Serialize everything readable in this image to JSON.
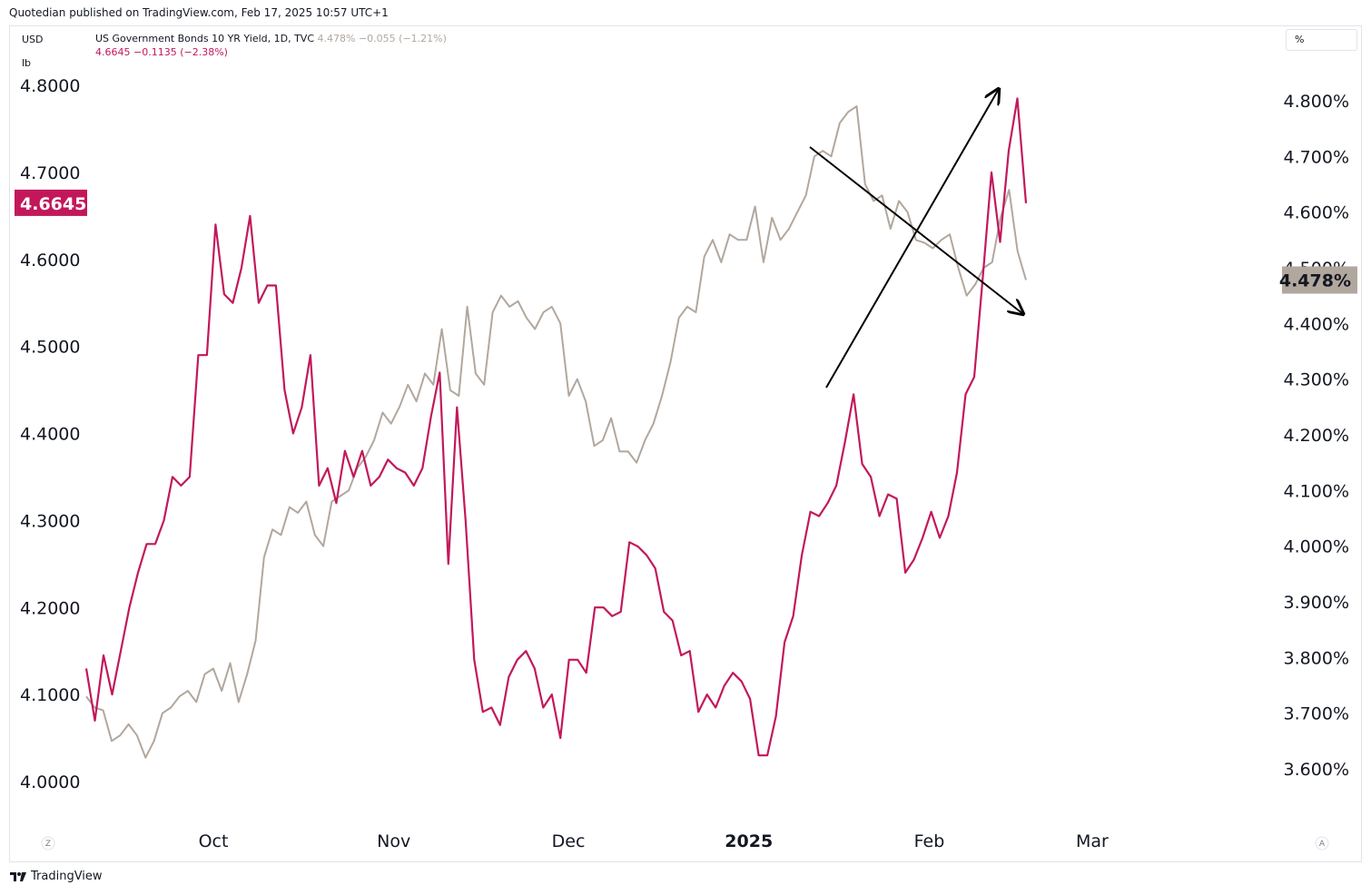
{
  "header": {
    "published_text": "Quotedian published on TradingView.com, Feb 17, 2025 10:57 UTC+1"
  },
  "left_units": {
    "currency": "USD",
    "unit": "lb"
  },
  "legend": {
    "symbol_line": "US Government Bonds 10 YR Yield, 1D, TVC",
    "symbol_last": "4.478%",
    "symbol_change": "−0.055 (−1.21%)",
    "second_last": "4.6645",
    "second_change": "−0.1135 (−2.38%)"
  },
  "right_unit_label": "%",
  "scale_mode_left": "Z",
  "scale_mode_right": "A",
  "footer": {
    "brand": "TradingView"
  },
  "colors": {
    "yield": "#b2a79d",
    "copper": "#c2185b",
    "arrow": "#000000"
  },
  "chart_data": {
    "type": "line",
    "x_tick_labels": [
      "Oct",
      "Nov",
      "Dec",
      "2025",
      "Feb",
      "Mar"
    ],
    "left_axis": {
      "ticks": [
        "4.0000",
        "4.1000",
        "4.2000",
        "4.3000",
        "4.4000",
        "4.5000",
        "4.6000",
        "4.7000",
        "4.8000"
      ],
      "range": [
        4.0,
        4.8
      ],
      "last_value_tag": "4.6645"
    },
    "right_axis": {
      "ticks": [
        "3.600%",
        "3.700%",
        "3.800%",
        "3.900%",
        "4.000%",
        "4.100%",
        "4.200%",
        "4.300%",
        "4.400%",
        "4.500%",
        "4.600%",
        "4.700%",
        "4.800%"
      ],
      "range": [
        3.6,
        4.8
      ],
      "last_value_tag": "4.478%"
    },
    "series": [
      {
        "name": "US Government Bonds 10 YR Yield, 1D, TVC",
        "axis": "right",
        "values": [
          3.73,
          3.71,
          3.705,
          3.65,
          3.66,
          3.68,
          3.66,
          3.62,
          3.65,
          3.7,
          3.71,
          3.73,
          3.74,
          3.72,
          3.77,
          3.78,
          3.74,
          3.79,
          3.72,
          3.77,
          3.83,
          3.98,
          4.03,
          4.02,
          4.07,
          4.06,
          4.08,
          4.02,
          4.0,
          4.08,
          4.09,
          4.1,
          4.14,
          4.16,
          4.19,
          4.24,
          4.22,
          4.25,
          4.29,
          4.26,
          4.31,
          4.29,
          4.39,
          4.28,
          4.27,
          4.43,
          4.31,
          4.29,
          4.42,
          4.45,
          4.43,
          4.44,
          4.41,
          4.39,
          4.42,
          4.43,
          4.4,
          4.27,
          4.3,
          4.26,
          4.18,
          4.19,
          4.23,
          4.17,
          4.17,
          4.15,
          4.19,
          4.22,
          4.27,
          4.33,
          4.41,
          4.43,
          4.42,
          4.52,
          4.55,
          4.51,
          4.56,
          4.55,
          4.55,
          4.61,
          4.51,
          4.59,
          4.55,
          4.57,
          4.6,
          4.63,
          4.7,
          4.71,
          4.7,
          4.76,
          4.78,
          4.79,
          4.65,
          4.62,
          4.63,
          4.57,
          4.62,
          4.6,
          4.55,
          4.545,
          4.535,
          4.55,
          4.56,
          4.5,
          4.45,
          4.47,
          4.5,
          4.51,
          4.59,
          4.64,
          4.53,
          4.478
        ]
      },
      {
        "name": "4.6645",
        "axis": "left",
        "values": [
          4.13,
          4.07,
          4.145,
          4.1,
          4.15,
          4.2,
          4.24,
          4.273,
          4.273,
          4.3,
          4.35,
          4.34,
          4.35,
          4.49,
          4.49,
          4.64,
          4.56,
          4.55,
          4.59,
          4.65,
          4.55,
          4.57,
          4.57,
          4.45,
          4.4,
          4.43,
          4.49,
          4.34,
          4.36,
          4.32,
          4.38,
          4.35,
          4.38,
          4.34,
          4.35,
          4.37,
          4.36,
          4.355,
          4.34,
          4.36,
          4.42,
          4.47,
          4.25,
          4.43,
          4.3,
          4.14,
          4.08,
          4.085,
          4.065,
          4.12,
          4.14,
          4.15,
          4.13,
          4.085,
          4.1,
          4.05,
          4.14,
          4.14,
          4.125,
          4.2,
          4.2,
          4.19,
          4.195,
          4.275,
          4.27,
          4.26,
          4.245,
          4.195,
          4.185,
          4.145,
          4.15,
          4.08,
          4.1,
          4.085,
          4.11,
          4.125,
          4.115,
          4.095,
          4.03,
          4.03,
          4.075,
          4.16,
          4.19,
          4.26,
          4.31,
          4.305,
          4.32,
          4.34,
          4.39,
          4.445,
          4.365,
          4.35,
          4.305,
          4.33,
          4.325,
          4.24,
          4.255,
          4.28,
          4.31,
          4.28,
          4.305,
          4.355,
          4.445,
          4.465,
          4.58,
          4.7,
          4.62,
          4.725,
          4.785,
          4.6645
        ]
      }
    ],
    "annotations": [
      {
        "type": "arrow",
        "description": "upward arrow",
        "from_date": "2025-01-15",
        "to_date": "2025-02-11"
      },
      {
        "type": "arrow",
        "description": "downward arrow",
        "from_date": "2025-01-13",
        "to_date": "2025-02-18"
      }
    ]
  }
}
